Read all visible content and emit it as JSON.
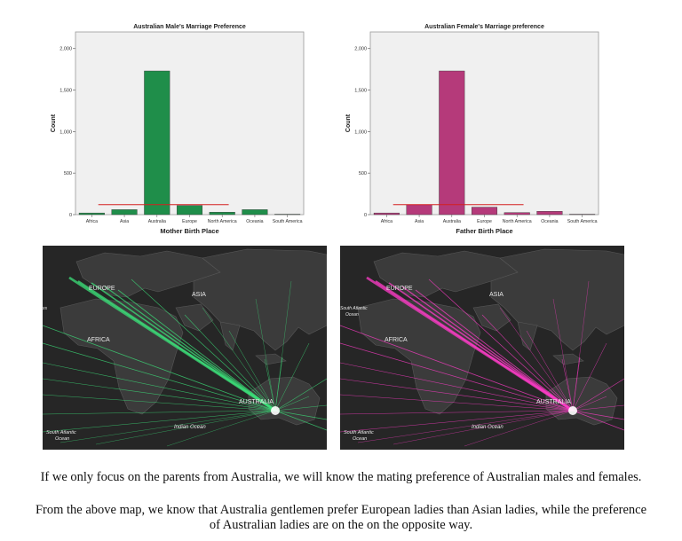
{
  "chart_data": [
    {
      "type": "bar",
      "title": "Australian Male's Marriage Preference",
      "xlabel": "Mother Birth Place",
      "ylabel": "Count",
      "categories": [
        "Africa",
        "Asia",
        "Australia",
        "Europe",
        "North America",
        "Oceania",
        "South America"
      ],
      "values": [
        20,
        60,
        1730,
        110,
        30,
        60,
        5
      ],
      "reference_line": 120,
      "ylim": [
        0,
        2200
      ],
      "yticks": [
        0,
        500,
        1000,
        1500,
        2000
      ],
      "ytick_labels": [
        "0",
        "500",
        "1,000",
        "1,500",
        "2,000"
      ],
      "bar_color": "#1f8e4a",
      "line_color": "#d42020",
      "background": "#f0f0f0"
    },
    {
      "type": "bar",
      "title": "Australian Female's Marriage preference",
      "xlabel": "Father Birth Place",
      "ylabel": "Count",
      "categories": [
        "Africa",
        "Asia",
        "Australia",
        "Europe",
        "North America",
        "Oceania",
        "South America"
      ],
      "values": [
        20,
        120,
        1730,
        90,
        25,
        40,
        5
      ],
      "reference_line": 120,
      "ylim": [
        0,
        2200
      ],
      "yticks": [
        0,
        500,
        1000,
        1500,
        2000
      ],
      "ytick_labels": [
        "0",
        "500",
        "1,000",
        "1,500",
        "2,000"
      ],
      "bar_color": "#b53a7a",
      "line_color": "#d42020",
      "background": "#f0f0f0"
    }
  ],
  "maps": [
    {
      "line_color": "#3ce07a",
      "labels": {
        "europe": "EUROPE",
        "asia": "ASIA",
        "africa": "AFRICA",
        "australia": "AUSTRALIA",
        "indian_ocean": "Indian Ocean",
        "south_atlantic": "South Atlantic\nOcean",
        "edge": "xs"
      }
    },
    {
      "line_color": "#ff3cc8",
      "labels": {
        "europe": "EUROPE",
        "asia": "ASIA",
        "africa": "AFRICA",
        "australia": "AUSTRALIA",
        "indian_ocean": "Indian Ocean",
        "south_atlantic": "South Atlantic\nOcean",
        "edge": "South Atlantic\nOcean"
      }
    }
  ],
  "caption": {
    "line1": "If we only focus on the parents from Australia, we will know the mating preference of Australian males and females.",
    "line2a": "From the above map, we know that Australia gentlemen prefer European ladies than Asian ladies, while the preference",
    "line2b": "of Australian ladies are on the on the opposite way."
  }
}
